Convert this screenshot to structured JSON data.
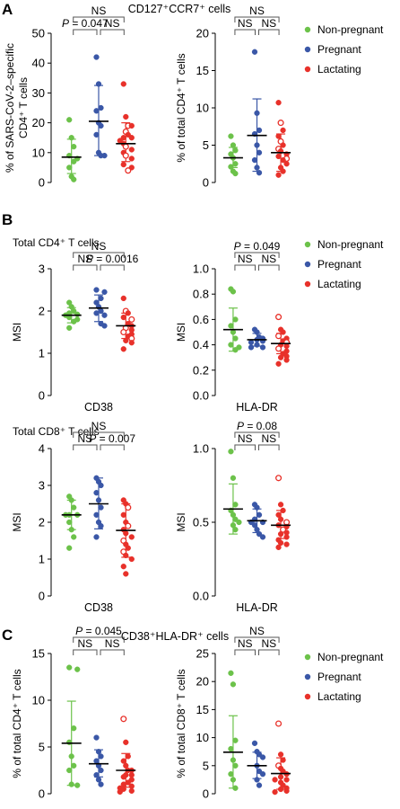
{
  "colors": {
    "nonpregnant": "#6cc24a",
    "pregnant": "#3a57a7",
    "lactating": "#e8312a",
    "mean_line": "#000000"
  },
  "legend": {
    "entries": [
      {
        "name": "Non-pregnant",
        "color": "#6cc24a"
      },
      {
        "name": "Pregnant",
        "color": "#3a57a7"
      },
      {
        "name": "Lactating",
        "color": "#e8312a"
      }
    ]
  },
  "panels": {
    "A": {
      "letter": "A",
      "title": "CD127⁺CCR7⁺ cells"
    },
    "B": {
      "letter": "B",
      "title_cd4": "Total CD4⁺ T cells",
      "title_cd8": "Total CD8⁺ T cells"
    },
    "C": {
      "letter": "C",
      "title": "CD38⁺HLA-DR⁺ cells"
    }
  },
  "chart_data": [
    {
      "id": "A_left",
      "type": "scatter",
      "ylabel_lines": [
        "% of SARS-CoV-2–specific",
        "CD4⁺ T cells"
      ],
      "xlabel": "",
      "ylim": [
        0,
        50
      ],
      "yticks": [
        0,
        10,
        20,
        30,
        40,
        50
      ],
      "series": [
        {
          "group": "Non-pregnant",
          "mean": 8.5,
          "sd_low": 3.0,
          "sd_high": 14.5,
          "points": [
            21,
            15,
            12,
            9,
            8,
            7,
            5,
            2,
            1
          ],
          "open": []
        },
        {
          "group": "Pregnant",
          "mean": 20.5,
          "sd_low": 9.0,
          "sd_high": 32.5,
          "points": [
            42,
            33,
            25,
            24,
            20,
            19,
            16,
            10,
            9,
            9
          ],
          "open": []
        },
        {
          "group": "Lactating",
          "mean": 13,
          "sd_low": 7.0,
          "sd_high": 20.0,
          "points": [
            33,
            22,
            19,
            19,
            17,
            16,
            15,
            15,
            14,
            13,
            12,
            11,
            10,
            9,
            8,
            6,
            5,
            4
          ],
          "open": [
            19,
            17,
            12,
            9,
            4
          ]
        }
      ],
      "brackets": [
        {
          "from": 0,
          "to": 1,
          "label": "P = 0.047",
          "level": 1
        },
        {
          "from": 1,
          "to": 2,
          "label": "NS",
          "level": 1
        },
        {
          "from": 0,
          "to": 2,
          "label": "NS",
          "level": 2
        }
      ]
    },
    {
      "id": "A_right",
      "type": "scatter",
      "ylabel_lines": [
        "% of total CD4⁺ T cells"
      ],
      "xlabel": "",
      "ylim": [
        0,
        20
      ],
      "yticks": [
        0,
        5,
        10,
        15,
        20
      ],
      "series": [
        {
          "group": "Non-pregnant",
          "mean": 3.3,
          "sd_low": 2.0,
          "sd_high": 4.7,
          "points": [
            6.2,
            5.0,
            4.3,
            3.8,
            3.3,
            2.5,
            2.1,
            1.5,
            1.2
          ],
          "open": []
        },
        {
          "group": "Pregnant",
          "mean": 6.3,
          "sd_low": 1.5,
          "sd_high": 11.2,
          "points": [
            17.5,
            9.3,
            7.0,
            6.5,
            5.0,
            4.0,
            3.0,
            2.0,
            1.3
          ],
          "open": []
        },
        {
          "group": "Lactating",
          "mean": 4.0,
          "sd_low": 1.5,
          "sd_high": 6.5,
          "points": [
            10.7,
            8.0,
            7.0,
            6.2,
            5.5,
            5.0,
            4.5,
            4.2,
            3.8,
            3.5,
            3.2,
            3.0,
            2.5,
            2.0,
            1.5,
            1.0
          ],
          "open": [
            8.0,
            5.5,
            4.5,
            3.2
          ]
        }
      ],
      "brackets": [
        {
          "from": 0,
          "to": 1,
          "label": "NS",
          "level": 1
        },
        {
          "from": 1,
          "to": 2,
          "label": "NS",
          "level": 1
        },
        {
          "from": 0,
          "to": 2,
          "label": "NS",
          "level": 2
        }
      ]
    },
    {
      "id": "B_cd4_cd38",
      "type": "scatter",
      "ylabel_lines": [
        "MSI"
      ],
      "xlabel": "CD38",
      "ylim": [
        0,
        3
      ],
      "yticks": [
        0,
        1,
        2,
        3
      ],
      "series": [
        {
          "group": "Non-pregnant",
          "mean": 1.9,
          "sd_low": 1.72,
          "sd_high": 2.08,
          "points": [
            2.2,
            2.1,
            2.0,
            1.95,
            1.92,
            1.9,
            1.85,
            1.8,
            1.75,
            1.6
          ],
          "open": []
        },
        {
          "group": "Pregnant",
          "mean": 2.07,
          "sd_low": 1.75,
          "sd_high": 2.38,
          "points": [
            2.5,
            2.45,
            2.3,
            2.2,
            2.1,
            2.0,
            1.95,
            1.9,
            1.7,
            1.65
          ],
          "open": []
        },
        {
          "group": "Lactating",
          "mean": 1.65,
          "sd_low": 1.35,
          "sd_high": 1.95,
          "points": [
            2.3,
            2.0,
            1.95,
            1.85,
            1.8,
            1.7,
            1.65,
            1.6,
            1.55,
            1.5,
            1.45,
            1.4,
            1.35,
            1.3,
            1.25,
            1.1
          ],
          "open": [
            2.0,
            1.8,
            1.6,
            1.5,
            1.35
          ]
        }
      ],
      "brackets": [
        {
          "from": 0,
          "to": 1,
          "label": "NS",
          "level": 1
        },
        {
          "from": 1,
          "to": 2,
          "label": "P = 0.0016",
          "level": 1
        },
        {
          "from": 0,
          "to": 2,
          "label": "NS",
          "level": 2
        }
      ]
    },
    {
      "id": "B_cd4_hladr",
      "type": "scatter",
      "ylabel_lines": [
        "MSI"
      ],
      "xlabel": "HLA-DR",
      "ylim": [
        0,
        1.0
      ],
      "yticks": [
        0.0,
        0.2,
        0.4,
        0.6,
        0.8,
        1.0
      ],
      "series": [
        {
          "group": "Non-pregnant",
          "mean": 0.52,
          "sd_low": 0.35,
          "sd_high": 0.69,
          "points": [
            0.84,
            0.82,
            0.6,
            0.55,
            0.5,
            0.45,
            0.4,
            0.38,
            0.36
          ],
          "open": []
        },
        {
          "group": "Pregnant",
          "mean": 0.44,
          "sd_low": 0.39,
          "sd_high": 0.49,
          "points": [
            0.52,
            0.5,
            0.46,
            0.45,
            0.44,
            0.43,
            0.42,
            0.4,
            0.38,
            0.38
          ],
          "open": []
        },
        {
          "group": "Lactating",
          "mean": 0.41,
          "sd_low": 0.33,
          "sd_high": 0.49,
          "points": [
            0.62,
            0.52,
            0.5,
            0.47,
            0.45,
            0.43,
            0.42,
            0.4,
            0.39,
            0.37,
            0.35,
            0.33,
            0.31,
            0.3,
            0.28,
            0.25
          ],
          "open": [
            0.62,
            0.47,
            0.42,
            0.37
          ]
        }
      ],
      "brackets": [
        {
          "from": 0,
          "to": 1,
          "label": "NS",
          "level": 1
        },
        {
          "from": 1,
          "to": 2,
          "label": "NS",
          "level": 1
        },
        {
          "from": 0,
          "to": 2,
          "label": "P = 0.049",
          "level": 2
        }
      ]
    },
    {
      "id": "B_cd8_cd38",
      "type": "scatter",
      "ylabel_lines": [
        "MSI"
      ],
      "xlabel": "CD38",
      "ylim": [
        0,
        4
      ],
      "yticks": [
        0,
        1,
        2,
        3,
        4
      ],
      "series": [
        {
          "group": "Non-pregnant",
          "mean": 2.2,
          "sd_low": 1.8,
          "sd_high": 2.6,
          "points": [
            2.7,
            2.6,
            2.4,
            2.2,
            2.2,
            2.2,
            2.0,
            1.8,
            1.6,
            1.3
          ],
          "open": []
        },
        {
          "group": "Pregnant",
          "mean": 2.5,
          "sd_low": 1.82,
          "sd_high": 3.2,
          "points": [
            3.2,
            3.1,
            3.0,
            2.8,
            2.6,
            2.4,
            2.2,
            2.0,
            1.9,
            1.6
          ],
          "open": []
        },
        {
          "group": "Lactating",
          "mean": 1.78,
          "sd_low": 1.05,
          "sd_high": 2.5,
          "points": [
            2.6,
            2.5,
            2.4,
            2.2,
            2.0,
            1.9,
            1.8,
            1.7,
            1.6,
            1.5,
            1.4,
            1.3,
            1.2,
            1.1,
            1.0,
            0.8,
            0.6
          ],
          "open": [
            2.4,
            1.9,
            1.5,
            1.2
          ]
        }
      ],
      "brackets": [
        {
          "from": 0,
          "to": 1,
          "label": "NS",
          "level": 1
        },
        {
          "from": 1,
          "to": 2,
          "label": "P = 0.007",
          "level": 1
        },
        {
          "from": 0,
          "to": 2,
          "label": "NS",
          "level": 2
        }
      ]
    },
    {
      "id": "B_cd8_hladr",
      "type": "scatter",
      "ylabel_lines": [
        "MSI"
      ],
      "xlabel": "HLA-DR",
      "ylim": [
        0,
        1.0
      ],
      "yticks": [
        0.0,
        0.5,
        1.0
      ],
      "series": [
        {
          "group": "Non-pregnant",
          "mean": 0.59,
          "sd_low": 0.42,
          "sd_high": 0.76,
          "points": [
            0.98,
            0.8,
            0.62,
            0.58,
            0.55,
            0.52,
            0.5,
            0.48,
            0.45
          ],
          "open": []
        },
        {
          "group": "Pregnant",
          "mean": 0.51,
          "sd_low": 0.43,
          "sd_high": 0.59,
          "points": [
            0.62,
            0.6,
            0.55,
            0.52,
            0.5,
            0.5,
            0.48,
            0.45,
            0.42,
            0.4
          ],
          "open": []
        },
        {
          "group": "Lactating",
          "mean": 0.48,
          "sd_low": 0.39,
          "sd_high": 0.58,
          "points": [
            0.8,
            0.62,
            0.58,
            0.55,
            0.52,
            0.5,
            0.48,
            0.47,
            0.45,
            0.43,
            0.42,
            0.4,
            0.38,
            0.36,
            0.35,
            0.33
          ],
          "open": [
            0.8,
            0.5,
            0.45
          ]
        }
      ],
      "brackets": [
        {
          "from": 0,
          "to": 1,
          "label": "NS",
          "level": 1
        },
        {
          "from": 1,
          "to": 2,
          "label": "NS",
          "level": 1
        },
        {
          "from": 0,
          "to": 2,
          "label": "P = 0.08",
          "level": 2
        }
      ]
    },
    {
      "id": "C_left",
      "type": "scatter",
      "ylabel_lines": [
        "% of total CD4⁺ T cells"
      ],
      "xlabel": "",
      "ylim": [
        0,
        15
      ],
      "yticks": [
        0,
        5,
        10,
        15
      ],
      "series": [
        {
          "group": "Non-pregnant",
          "mean": 5.4,
          "sd_low": 0.9,
          "sd_high": 9.9,
          "points": [
            13.5,
            13.3,
            7.0,
            5.5,
            4.0,
            3.0,
            2.5,
            1.0,
            0.9
          ],
          "open": []
        },
        {
          "group": "Pregnant",
          "mean": 3.2,
          "sd_low": 1.8,
          "sd_high": 4.7,
          "points": [
            6.0,
            4.5,
            4.0,
            3.5,
            3.0,
            2.5,
            2.0,
            1.5,
            1.0
          ],
          "open": []
        },
        {
          "group": "Lactating",
          "mean": 2.5,
          "sd_low": 0.7,
          "sd_high": 4.3,
          "points": [
            8.0,
            5.5,
            4.0,
            3.5,
            3.0,
            2.5,
            2.5,
            2.0,
            2.0,
            1.8,
            1.5,
            1.2,
            1.0,
            0.8,
            0.6,
            0.5,
            0.3,
            0.2
          ],
          "open": [
            8.0
          ]
        }
      ],
      "brackets": [
        {
          "from": 0,
          "to": 1,
          "label": "NS",
          "level": 1
        },
        {
          "from": 1,
          "to": 2,
          "label": "NS",
          "level": 1
        },
        {
          "from": 0,
          "to": 2,
          "label": "P = 0.045",
          "level": 2
        }
      ]
    },
    {
      "id": "C_right",
      "type": "scatter",
      "ylabel_lines": [
        "% of total CD8⁺ T cells"
      ],
      "xlabel": "",
      "ylim": [
        0,
        25
      ],
      "yticks": [
        0,
        5,
        10,
        15,
        20,
        25
      ],
      "series": [
        {
          "group": "Non-pregnant",
          "mean": 7.4,
          "sd_low": 1.0,
          "sd_high": 13.9,
          "points": [
            21.5,
            19.5,
            9.5,
            8.0,
            6.0,
            5.0,
            3.5,
            2.5,
            1.0
          ],
          "open": []
        },
        {
          "group": "Pregnant",
          "mean": 5.0,
          "sd_low": 2.7,
          "sd_high": 7.4,
          "points": [
            9.0,
            7.5,
            7.0,
            6.5,
            5.0,
            4.0,
            3.5,
            2.5,
            1.5
          ],
          "open": []
        },
        {
          "group": "Lactating",
          "mean": 3.6,
          "sd_low": 0.8,
          "sd_high": 6.4,
          "points": [
            12.5,
            7.0,
            6.0,
            5.0,
            4.5,
            4.0,
            3.5,
            3.0,
            2.5,
            2.5,
            2.0,
            1.5,
            1.0,
            0.8,
            0.5,
            0.3
          ],
          "open": [
            12.5,
            5.0
          ]
        }
      ],
      "brackets": [
        {
          "from": 0,
          "to": 1,
          "label": "NS",
          "level": 1
        },
        {
          "from": 1,
          "to": 2,
          "label": "NS",
          "level": 1
        },
        {
          "from": 0,
          "to": 2,
          "label": "NS",
          "level": 2
        }
      ]
    }
  ]
}
